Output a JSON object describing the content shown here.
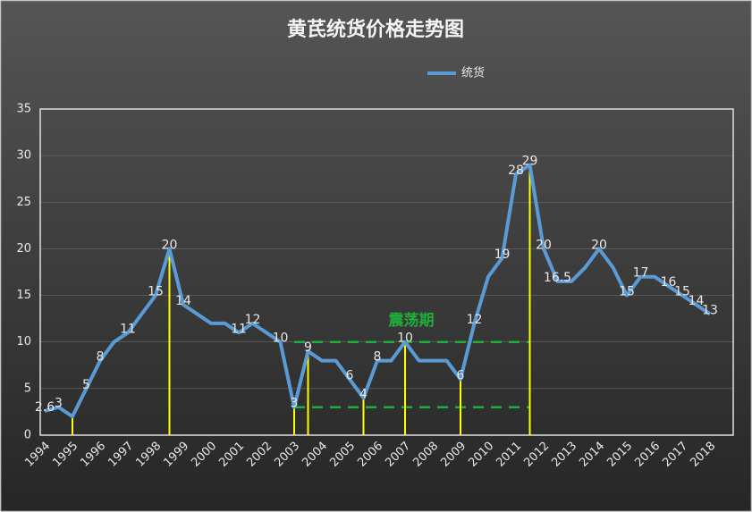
{
  "chart_data": {
    "type": "line",
    "title": "黄芪统货价格走势图",
    "categories": [
      "1994",
      null,
      "1995",
      null,
      "1996",
      null,
      "1997",
      null,
      "1998",
      null,
      "1999",
      null,
      "2000",
      null,
      "2001",
      null,
      "2002",
      null,
      "2003",
      null,
      "2004",
      null,
      "2005",
      null,
      "2006",
      null,
      "2007",
      null,
      "2008",
      null,
      "2009",
      null,
      "2010",
      null,
      "2011",
      null,
      "2012",
      null,
      "2013",
      null,
      "2014",
      null,
      "2015",
      null,
      "2016",
      null,
      "2017",
      null,
      "2018"
    ],
    "series": [
      {
        "name": "统货",
        "color": "#5b9bd5",
        "values": [
          2.6,
          3,
          2,
          5,
          8,
          10,
          11,
          13,
          15,
          20,
          14,
          13,
          12,
          12,
          11,
          12,
          11,
          10,
          3,
          9,
          8,
          8,
          6,
          4,
          8,
          8,
          10,
          8,
          8,
          8,
          6,
          12,
          17,
          19,
          28,
          29,
          20,
          16.5,
          16.5,
          18,
          20,
          18,
          15,
          17,
          17,
          16,
          15,
          14,
          13
        ],
        "value_labels": [
          "2.6",
          "3",
          null,
          "5",
          "8",
          null,
          "11",
          null,
          "15",
          "20",
          "14",
          null,
          null,
          null,
          "11",
          "12",
          null,
          "10",
          "3",
          "9",
          null,
          null,
          "6",
          "4",
          "8",
          null,
          "10",
          null,
          null,
          null,
          "6",
          "12",
          null,
          "19",
          "28",
          "29",
          "20",
          "16.5",
          null,
          null,
          "20",
          null,
          "15",
          "17",
          null,
          "16",
          "15",
          "14",
          "13"
        ]
      }
    ],
    "ylim": [
      0,
      35
    ],
    "yticks": [
      0,
      5,
      10,
      15,
      20,
      25,
      30,
      35
    ],
    "grid": true,
    "highlight_color": "#ffff00",
    "highlight_indices": [
      2,
      9,
      18,
      19,
      23,
      26,
      30,
      35
    ],
    "annotation": "震荡期",
    "annotation_color": "#1fae3a",
    "dashed_lines": [
      {
        "y": 10,
        "x": [
          18,
          35
        ]
      },
      {
        "y": 3,
        "x": [
          18,
          35
        ]
      }
    ]
  }
}
